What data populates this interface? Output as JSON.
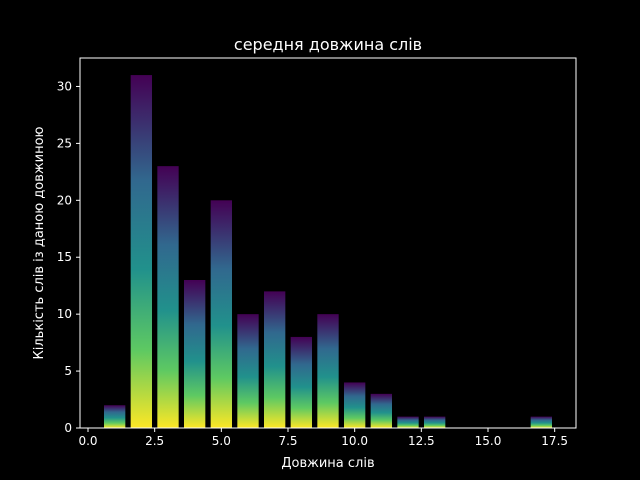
{
  "chart_data": {
    "type": "bar",
    "title": "середня довжина слів",
    "xlabel": "Довжина слів",
    "ylabel": "Кількість слів із даною довжиною",
    "x": [
      1,
      2,
      3,
      4,
      5,
      6,
      7,
      8,
      9,
      10,
      11,
      12,
      13,
      17
    ],
    "values": [
      2,
      31,
      23,
      13,
      20,
      10,
      12,
      8,
      10,
      4,
      3,
      1,
      1,
      1
    ],
    "bar_width": 0.8,
    "xlim": [
      -0.3,
      18.3
    ],
    "ylim": [
      0,
      32.5
    ],
    "xticks": [
      0.0,
      2.5,
      5.0,
      7.5,
      10.0,
      12.5,
      15.0,
      17.5
    ],
    "xtick_labels": [
      "0.0",
      "2.5",
      "5.0",
      "7.5",
      "10.0",
      "12.5",
      "15.0",
      "17.5"
    ],
    "yticks": [
      0,
      5,
      10,
      15,
      20,
      25,
      30
    ],
    "ytick_labels": [
      "0",
      "5",
      "10",
      "15",
      "20",
      "25",
      "30"
    ],
    "grid": false,
    "legend": "none",
    "colors": {
      "background": "#000000",
      "axes": "#ffffff",
      "text": "#ffffff",
      "gradient_top": "#440154",
      "gradient_upper": "#31688e",
      "gradient_mid": "#21918c",
      "gradient_lower": "#5ec962",
      "gradient_bottom": "#fde725"
    }
  }
}
